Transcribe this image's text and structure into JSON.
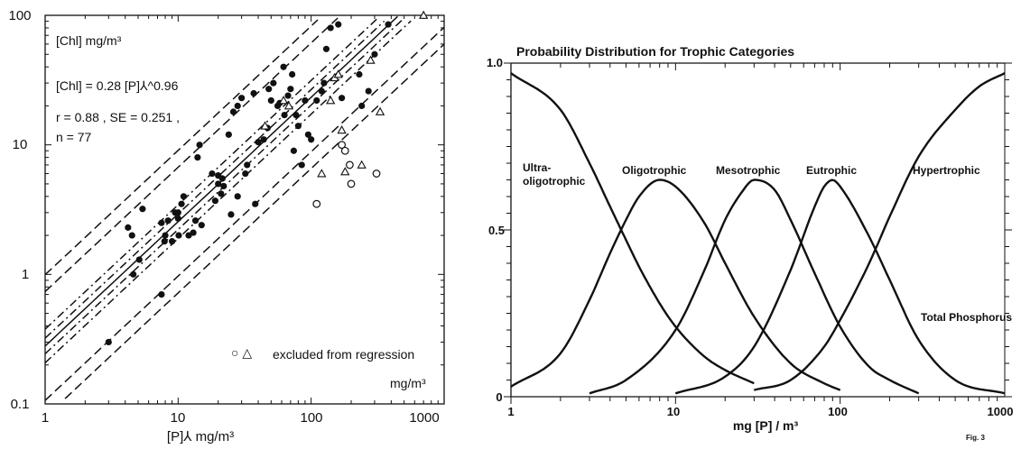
{
  "chart_data": [
    {
      "type": "scatter",
      "xscale": "log",
      "yscale": "log",
      "xlim": [
        1,
        1000
      ],
      "ylim": [
        0.1,
        100
      ],
      "x_ticks": [
        "1",
        "10",
        "100",
        "1000"
      ],
      "y_ticks": [
        "0.1",
        "1",
        "10",
        "100"
      ],
      "xlabel": "[P]⅄ mg/m³",
      "ylabel": "[Chl] mg/m³",
      "equation": "[Chl] = 0.28 [P]⅄^0.96",
      "stats_line1": "r = 0.88 , SE = 0.251 ,",
      "stats_line2": "n = 77",
      "legend": "excluded from regression",
      "legend_symbols": "○ △",
      "x_unit_label": "mg/m³",
      "fit": {
        "a": 0.28,
        "b": 0.96
      },
      "inner_bands_log10": [
        0.06,
        0.13
      ],
      "outer_bands_log10": [
        0.42,
        0.55
      ],
      "series": [
        {
          "marker": "filled-circle",
          "points": [
            [
              3,
              0.3
            ],
            [
              4.2,
              2.3
            ],
            [
              4.5,
              2
            ],
            [
              4.6,
              1
            ],
            [
              5.1,
              1.3
            ],
            [
              5.4,
              3.2
            ],
            [
              7.5,
              0.7
            ],
            [
              7.5,
              2.5
            ],
            [
              7.9,
              1.8
            ],
            [
              8,
              2
            ],
            [
              8.4,
              2.6
            ],
            [
              9,
              1.8
            ],
            [
              9.5,
              3
            ],
            [
              10,
              3
            ],
            [
              10,
              2.7
            ],
            [
              10.1,
              2
            ],
            [
              10.6,
              3.5
            ],
            [
              11,
              4
            ],
            [
              12,
              2
            ],
            [
              13,
              2.1
            ],
            [
              13.5,
              2.6
            ],
            [
              14,
              8
            ],
            [
              14.5,
              10
            ],
            [
              15,
              2.4
            ],
            [
              18,
              6
            ],
            [
              19,
              3.7
            ],
            [
              20,
              5.8
            ],
            [
              20,
              5
            ],
            [
              21,
              4.2
            ],
            [
              21.5,
              5.5
            ],
            [
              22,
              4.8
            ],
            [
              24,
              12
            ],
            [
              25,
              2.9
            ],
            [
              26,
              18
            ],
            [
              28,
              4
            ],
            [
              28,
              20
            ],
            [
              30,
              23
            ],
            [
              32,
              6
            ],
            [
              33,
              7
            ],
            [
              37,
              25
            ],
            [
              38,
              3.5
            ],
            [
              40,
              10.5
            ],
            [
              44,
              11
            ],
            [
              47,
              13.5
            ],
            [
              48,
              27
            ],
            [
              50,
              22
            ],
            [
              52,
              30
            ],
            [
              56,
              20
            ],
            [
              58,
              21
            ],
            [
              62,
              40
            ],
            [
              63,
              17
            ],
            [
              67,
              24
            ],
            [
              70,
              27
            ],
            [
              72,
              35
            ],
            [
              74,
              9
            ],
            [
              77,
              17
            ],
            [
              80,
              14
            ],
            [
              85,
              7
            ],
            [
              90,
              22
            ],
            [
              95,
              12
            ],
            [
              100,
              11
            ],
            [
              110,
              22
            ],
            [
              120,
              26
            ],
            [
              125,
              30
            ],
            [
              130,
              55
            ],
            [
              140,
              80
            ],
            [
              160,
              85
            ],
            [
              170,
              23
            ],
            [
              230,
              35
            ],
            [
              240,
              20
            ],
            [
              270,
              26
            ],
            [
              300,
              50
            ],
            [
              380,
              85
            ]
          ]
        },
        {
          "marker": "open-triangle",
          "points": [
            [
              45,
              14
            ],
            [
              62,
              22
            ],
            [
              68,
              20
            ],
            [
              120,
              6
            ],
            [
              140,
              22
            ],
            [
              150,
              33
            ],
            [
              160,
              35
            ],
            [
              170,
              13
            ],
            [
              180,
              6.2
            ],
            [
              240,
              7
            ],
            [
              280,
              45
            ],
            [
              330,
              18
            ],
            [
              700,
              100
            ]
          ]
        },
        {
          "marker": "open-circle",
          "points": [
            [
              110,
              3.5
            ],
            [
              170,
              10
            ],
            [
              180,
              9
            ],
            [
              195,
              7
            ],
            [
              200,
              5
            ],
            [
              310,
              6
            ]
          ]
        }
      ]
    },
    {
      "type": "line",
      "title": "Probability Distribution for Trophic Categories",
      "xscale": "log",
      "xlim": [
        1,
        1000
      ],
      "ylim": [
        0,
        1
      ],
      "x_ticks": [
        "1",
        "10",
        "100",
        "1000"
      ],
      "y_ticks": [
        "0",
        "0.5",
        "1.0"
      ],
      "xlabel": "mg [P] / m³",
      "annotation": "Total Phosphorus",
      "fig_label": "Fig. 3",
      "series": [
        {
          "name": "Ultra-oligotrophic",
          "x": [
            1,
            2,
            3,
            4,
            5,
            6,
            8,
            10,
            15,
            20,
            30
          ],
          "y": [
            0.97,
            0.86,
            0.7,
            0.57,
            0.47,
            0.39,
            0.28,
            0.21,
            0.12,
            0.08,
            0.04
          ]
        },
        {
          "name": "Oligotrophic",
          "x": [
            1,
            2,
            3,
            4,
            5,
            6,
            8,
            10,
            15,
            20,
            30,
            50,
            80,
            100
          ],
          "y": [
            0.03,
            0.13,
            0.29,
            0.43,
            0.53,
            0.6,
            0.65,
            0.63,
            0.52,
            0.4,
            0.24,
            0.1,
            0.04,
            0.02
          ]
        },
        {
          "name": "Mesotrophic",
          "x": [
            3,
            5,
            10,
            15,
            20,
            25,
            30,
            40,
            50,
            70,
            100,
            150,
            200,
            300
          ],
          "y": [
            0.01,
            0.05,
            0.2,
            0.38,
            0.53,
            0.61,
            0.65,
            0.62,
            0.53,
            0.37,
            0.21,
            0.09,
            0.05,
            0.01
          ]
        },
        {
          "name": "Eutrophic",
          "x": [
            10,
            20,
            30,
            50,
            70,
            80,
            90,
            100,
            150,
            200,
            300,
            500,
            1000
          ],
          "y": [
            0.01,
            0.06,
            0.15,
            0.38,
            0.57,
            0.63,
            0.65,
            0.63,
            0.48,
            0.35,
            0.17,
            0.05,
            0.01
          ]
        },
        {
          "name": "Hypertrophic",
          "x": [
            30,
            50,
            80,
            100,
            150,
            200,
            300,
            500,
            700,
            1000
          ],
          "y": [
            0.02,
            0.05,
            0.15,
            0.23,
            0.4,
            0.54,
            0.72,
            0.86,
            0.93,
            0.97
          ]
        }
      ],
      "labels": [
        "Ultra-",
        "oligotrophic",
        "Oligotrophic",
        "Mesotrophic",
        "Eutrophic",
        "Hypertrophic"
      ]
    }
  ]
}
